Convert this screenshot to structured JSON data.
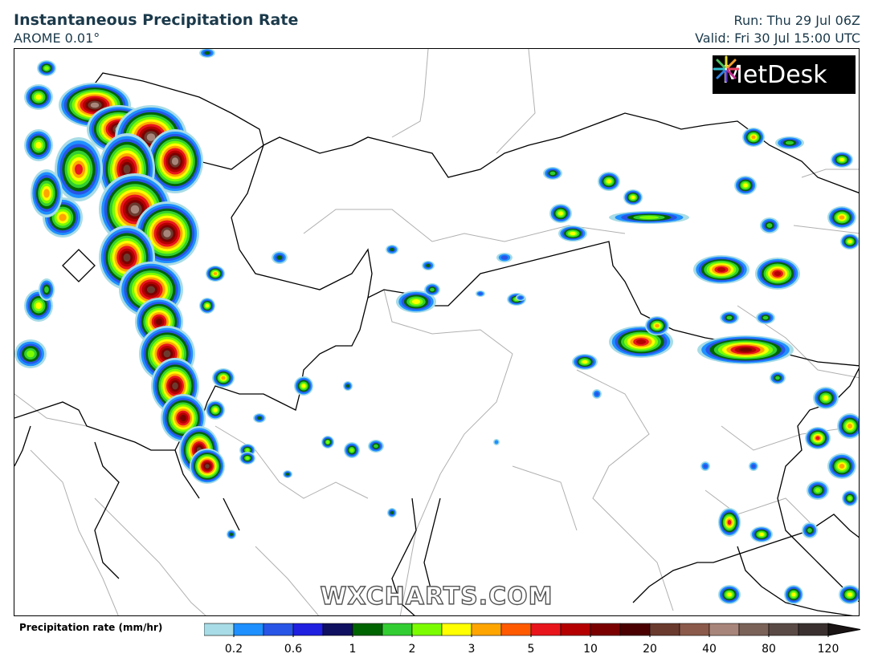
{
  "header": {
    "title": "Instantaneous Precipitation Rate",
    "model": "AROME 0.01°",
    "run": "Run: Thu 29 Jul 06Z",
    "valid": "Valid: Fri 30 Jul 15:00 UTC"
  },
  "logo": {
    "text": "MetDesk",
    "icon": "metdesk-burst-icon"
  },
  "watermark": "WXCHARTS.COM",
  "legend": {
    "label": "Precipitation rate (mm/hr)",
    "tick_labels": [
      "0.2",
      "0.6",
      "1",
      "2",
      "3",
      "5",
      "10",
      "20",
      "40",
      "80",
      "120"
    ],
    "colors": [
      "#a8dce6",
      "#1e90ff",
      "#2855e6",
      "#2020e0",
      "#101060",
      "#006400",
      "#32cd32",
      "#7cfc00",
      "#ffff00",
      "#ffa500",
      "#ff5a00",
      "#e8161c",
      "#b40000",
      "#7a0000",
      "#4a0000",
      "#6b3a2e",
      "#8b5a4a",
      "#a8857a",
      "#7a6258",
      "#5a4a45",
      "#3a3030"
    ]
  },
  "map": {
    "type": "precipitation-radar",
    "region": "Alpine region, northern Italy / Switzerland / Austria",
    "borders": "black country borders, grey regional borders"
  }
}
